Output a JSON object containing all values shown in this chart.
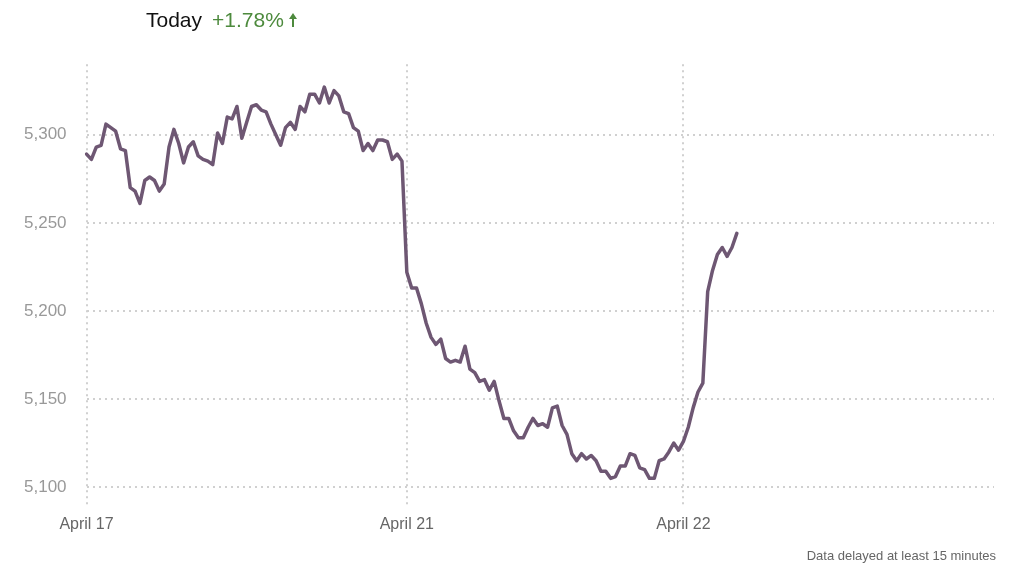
{
  "chart_data": {
    "type": "line",
    "title": "Today",
    "subtitle": "+1.78%",
    "annotations": [
      "Data delayed at least 15 minutes"
    ],
    "categories": [
      "April 17",
      null,
      null,
      null,
      null,
      null,
      null,
      null,
      null,
      null,
      null,
      null,
      null,
      null,
      null,
      null,
      null,
      null,
      null,
      null,
      null,
      null,
      null,
      null,
      null,
      null,
      null,
      null,
      null,
      null,
      null,
      null,
      null,
      null,
      null,
      null,
      null,
      null,
      null,
      null,
      null,
      null,
      null,
      null,
      null,
      null,
      null,
      null,
      null,
      null,
      null,
      null,
      null,
      null,
      null,
      null,
      null,
      null,
      null,
      null,
      null,
      null,
      null,
      null,
      null,
      null,
      "April 21",
      null,
      null,
      null,
      null,
      null,
      null,
      null,
      null,
      null,
      null,
      null,
      null,
      null,
      null,
      null,
      null,
      null,
      null,
      null,
      null,
      null,
      null,
      null,
      null,
      null,
      null,
      null,
      null,
      null,
      null,
      null,
      null,
      null,
      null,
      null,
      null,
      null,
      null,
      null,
      null,
      null,
      null,
      null,
      null,
      null,
      null,
      null,
      null,
      null,
      null,
      null,
      null,
      null,
      null,
      null,
      null,
      "April 22",
      null,
      null,
      null,
      null,
      null,
      null,
      null,
      null,
      null,
      null,
      null,
      null,
      null,
      null,
      null,
      null,
      null,
      null,
      null,
      null,
      null,
      null,
      null,
      null,
      null,
      null,
      null,
      null,
      null,
      null,
      null,
      null,
      null,
      null,
      null,
      null,
      null,
      null,
      null,
      null,
      null,
      null,
      null,
      null,
      null,
      null,
      null,
      null,
      null,
      null,
      null,
      null,
      null,
      null,
      null,
      null,
      null,
      null,
      null,
      null,
      null,
      null,
      null,
      null
    ],
    "series": [
      {
        "color": "#6e5773",
        "values": [
          5289,
          5286,
          5293,
          5294,
          5306,
          5304,
          5302,
          5292,
          5291,
          5270,
          5268,
          5261,
          5274,
          5276,
          5274,
          5268,
          5272,
          5293,
          5303,
          5295,
          5284,
          5293,
          5296,
          5288,
          5286,
          5285,
          5283,
          5301,
          5295,
          5310,
          5309,
          5316,
          5298,
          5307,
          5316,
          5317,
          5314,
          5313,
          5306,
          5300,
          5294,
          5304,
          5307,
          5303,
          5316,
          5313,
          5323,
          5323,
          5318,
          5327,
          5318,
          5325,
          5322,
          5313,
          5312,
          5304,
          5302,
          5291,
          5295,
          5291,
          5297,
          5297,
          5296,
          5286,
          5289,
          5285,
          5222,
          5213,
          5213,
          5204,
          5193,
          5185,
          5181,
          5184,
          5173,
          5171,
          5172,
          5171,
          5180,
          5167,
          5165,
          5160,
          5161,
          5155,
          5160,
          5149,
          5139,
          5139,
          5132,
          5128,
          5128,
          5134,
          5139,
          5135,
          5136,
          5134,
          5145,
          5146,
          5135,
          5130,
          5119,
          5115,
          5119,
          5116,
          5118,
          5115,
          5109,
          5109,
          5105,
          5106,
          5112,
          5112,
          5119,
          5118,
          5111,
          5110,
          5105,
          5105,
          5115,
          5116,
          5120,
          5125,
          5121,
          5126,
          5134,
          5145,
          5154,
          5159,
          5211,
          5223,
          5232,
          5236,
          5231,
          5236,
          5244,
          null,
          null,
          null,
          null,
          null,
          null,
          null,
          null,
          null,
          null,
          null,
          null,
          null,
          null,
          null,
          null,
          null,
          null,
          null,
          null,
          null,
          null,
          null,
          null,
          null,
          null,
          null,
          null,
          null,
          null,
          null,
          null,
          null,
          null,
          null,
          null,
          null,
          null,
          null,
          null,
          null,
          null,
          null,
          null,
          null,
          null,
          null,
          null,
          null,
          null,
          null,
          null,
          null
        ]
      }
    ],
    "ylim": [
      5090,
      5340
    ],
    "yticks": [
      {
        "value": 5100,
        "label": "5,100"
      },
      {
        "value": 5150,
        "label": "5,150"
      },
      {
        "value": 5200,
        "label": "5,200"
      },
      {
        "value": 5250,
        "label": "5,250"
      },
      {
        "value": 5300,
        "label": "5,300"
      }
    ],
    "grid": true,
    "legend": false,
    "marker": "none",
    "line_style": "solid"
  }
}
